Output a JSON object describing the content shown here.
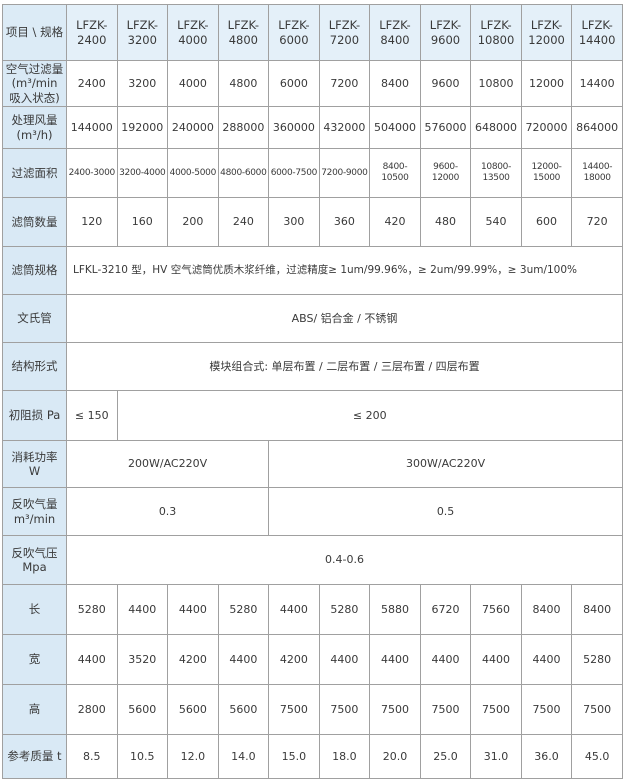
{
  "colors": {
    "header_bg": "#e4f0f9",
    "label_bg": "#d9e9f5",
    "border": "#a0a0a0",
    "text": "#3a3a3a"
  },
  "table": {
    "corner_label": "项目 \\ 规格",
    "models": [
      "LFZK-2400",
      "LFZK-3200",
      "LFZK-4000",
      "LFZK-4800",
      "LFZK-6000",
      "LFZK-7200",
      "LFZK-8400",
      "LFZK-9600",
      "LFZK-10800",
      "LFZK-12000",
      "LFZK-14400"
    ],
    "rows": [
      {
        "label": "空气过滤量\n(m³/min\n吸入状态)",
        "cells": [
          "2400",
          "3200",
          "4000",
          "4800",
          "6000",
          "7200",
          "8400",
          "9600",
          "10800",
          "12000",
          "14400"
        ]
      },
      {
        "label": "处理风量\n(m³/h)",
        "cells": [
          "144000",
          "192000",
          "240000",
          "288000",
          "360000",
          "432000",
          "504000",
          "576000",
          "648000",
          "720000",
          "864000"
        ]
      },
      {
        "label": "过滤面积",
        "cells": [
          "2400-3000",
          "3200-4000",
          "4000-5000",
          "4800-6000",
          "6000-7500",
          "7200-9000",
          "8400-10500",
          "9600-12000",
          "10800-13500",
          "12000-15000",
          "14400-18000"
        ]
      },
      {
        "label": "滤筒数量",
        "cells": [
          "120",
          "160",
          "200",
          "240",
          "300",
          "360",
          "420",
          "480",
          "540",
          "600",
          "720"
        ]
      },
      {
        "label": "滤筒规格",
        "cells": [
          {
            "t": "LFKL-3210 型，HV 空气滤筒优质木浆纤维，过滤精度≥ 1um/99.96%，≥ 2um/99.99%，≥ 3um/100%",
            "span": 11,
            "align": "left"
          }
        ]
      },
      {
        "label": "文氏管",
        "cells": [
          {
            "t": "ABS/ 铝合金 / 不锈钢",
            "span": 11
          }
        ]
      },
      {
        "label": "结构形式",
        "cells": [
          {
            "t": "模块组合式: 单层布置 / 二层布置 / 三层布置 / 四层布置",
            "span": 11
          }
        ]
      },
      {
        "label": "初阻损 Pa",
        "cells": [
          {
            "t": "≤ 150",
            "span": 1
          },
          {
            "t": "≤ 200",
            "span": 10
          }
        ]
      },
      {
        "label": "消耗功率\nW",
        "cells": [
          {
            "t": "200W/AC220V",
            "span": 4
          },
          {
            "t": "300W/AC220V",
            "span": 7
          }
        ]
      },
      {
        "label": "反吹气量\nm³/min",
        "cells": [
          {
            "t": "0.3",
            "span": 4
          },
          {
            "t": "0.5",
            "span": 7
          }
        ]
      },
      {
        "label": "反吹气压\nMpa",
        "cells": [
          {
            "t": "0.4-0.6",
            "span": 11
          }
        ]
      },
      {
        "label": "长",
        "cells": [
          "5280",
          "4400",
          "4400",
          "5280",
          "4400",
          "5280",
          "5880",
          "6720",
          "7560",
          "8400",
          "8400"
        ]
      },
      {
        "label": "宽",
        "cells": [
          "4400",
          "3520",
          "4200",
          "4400",
          "4200",
          "4400",
          "4400",
          "4400",
          "4400",
          "4400",
          "5280"
        ]
      },
      {
        "label": "高",
        "cells": [
          "2800",
          "5600",
          "5600",
          "5600",
          "7500",
          "7500",
          "7500",
          "7500",
          "7500",
          "7500",
          "7500"
        ]
      },
      {
        "label": "参考质量 t",
        "cells": [
          "8.5",
          "10.5",
          "12.0",
          "14.0",
          "15.0",
          "18.0",
          "20.0",
          "25.0",
          "31.0",
          "36.0",
          "45.0"
        ]
      }
    ]
  }
}
